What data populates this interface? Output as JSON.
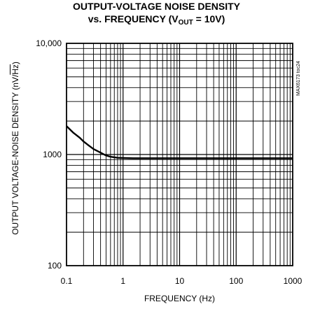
{
  "chart_data": {
    "type": "line",
    "title_line1": "OUTPUT-VOLTAGE NOISE DENSITY",
    "title_line2_pre": "vs. FREQUENCY (V",
    "title_line2_sub": "OUT",
    "title_line2_post": " = 10V)",
    "xlabel": "FREQUENCY (Hz)",
    "ylabel_pre": "OUTPUT VOLTAGE-NOISE DENSITY (nV/",
    "ylabel_sqrt": "Hz",
    "ylabel_post": ")",
    "part_number": "MAX6173 toc24",
    "x_scale": "log",
    "y_scale": "log",
    "xlim": [
      0.1,
      1000
    ],
    "ylim": [
      100,
      10000
    ],
    "x_ticks": [
      0.1,
      1,
      10,
      100,
      1000
    ],
    "x_tick_labels": [
      "0.1",
      "1",
      "10",
      "100",
      "1000"
    ],
    "y_ticks": [
      100,
      1000,
      10000
    ],
    "y_tick_labels": [
      "100",
      "1000",
      "10,000"
    ],
    "grid": true,
    "series": [
      {
        "x": [
          0.1,
          0.13,
          0.17,
          0.2,
          0.25,
          0.3,
          0.4,
          0.5,
          0.6,
          0.8,
          1,
          1.5,
          2,
          5,
          10,
          100,
          1000
        ],
        "y": [
          1800,
          1580,
          1420,
          1310,
          1200,
          1120,
          1040,
          980,
          955,
          935,
          930,
          925,
          925,
          925,
          925,
          925,
          925
        ]
      }
    ]
  }
}
